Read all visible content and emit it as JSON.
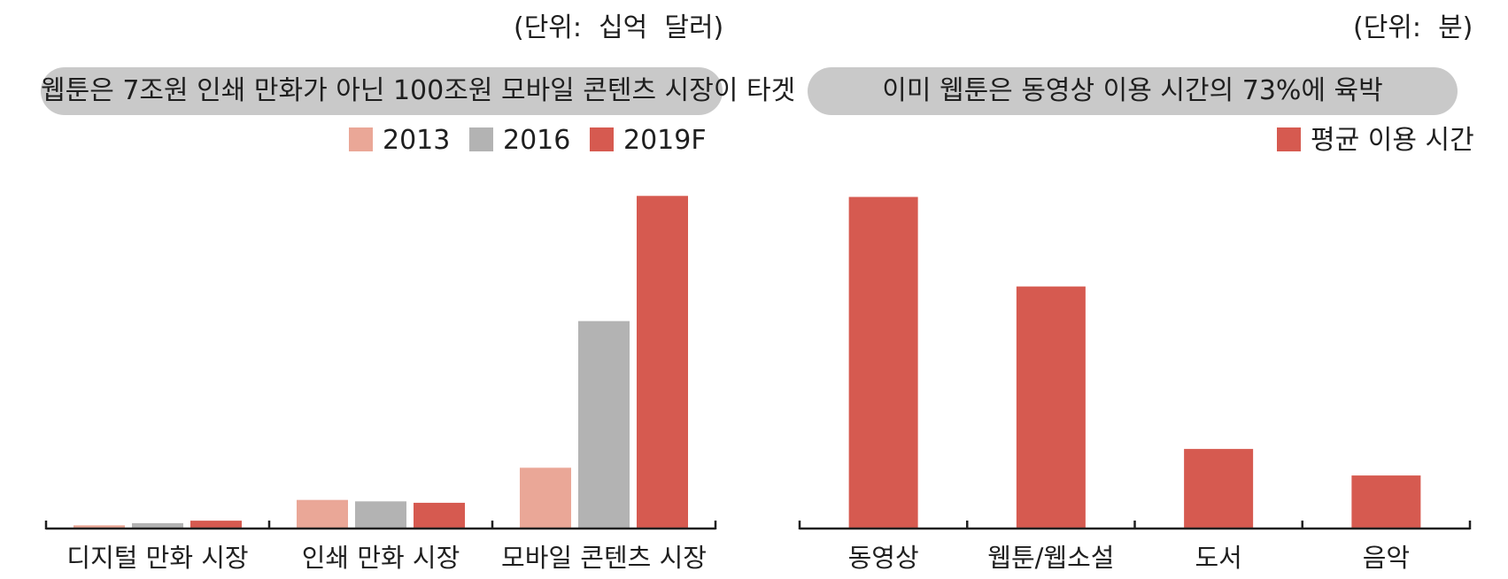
{
  "left_panel": {
    "unit_label": "(단위:  십억  달러)",
    "headline": "웹툰은 7조원 인쇄 만화가 아닌 100조원 모바일 콘텐츠 시장이 타겟"
  },
  "right_panel": {
    "unit_label": "(단위:  분)",
    "headline": "이미 웹툰은 동영상 이용 시간의 73%에 육박"
  },
  "colors": {
    "series_2013": "#eaa797",
    "series_2016": "#b3b3b3",
    "series_2019F": "#d65a50",
    "pill_bg": "#c9c9c9",
    "axis": "#1f1f1f"
  },
  "chart_data": [
    {
      "type": "bar",
      "title": "웹툰은 7조원 인쇄 만화가 아닌 100조원 모바일 콘텐츠 시장이 타겟",
      "unit": "(단위:  십억  달러)",
      "categories": [
        "디지털 만화 시장",
        "인쇄 만화 시장",
        "모바일 콘텐츠 시장"
      ],
      "series": [
        {
          "name": "2013",
          "values": [
            0.9,
            8.0,
            17.0
          ]
        },
        {
          "name": "2016",
          "values": [
            1.5,
            7.6,
            58.0
          ]
        },
        {
          "name": "2019F",
          "values": [
            2.2,
            7.2,
            93.0
          ]
        }
      ],
      "ylim": [
        0,
        100
      ],
      "grid": false,
      "legend": "top-right"
    },
    {
      "type": "bar",
      "title": "이미 웹툰은 동영상 이용 시간의 73%에 육박",
      "unit": "(단위:  분)",
      "categories": [
        "동영상",
        "웹툰/웹소설",
        "도서",
        "음악"
      ],
      "series": [
        {
          "name": "평균 이용 시간",
          "values": [
            100,
            73,
            24,
            16
          ]
        }
      ],
      "ylim": [
        0,
        110
      ],
      "grid": false,
      "legend": "top-right"
    }
  ]
}
